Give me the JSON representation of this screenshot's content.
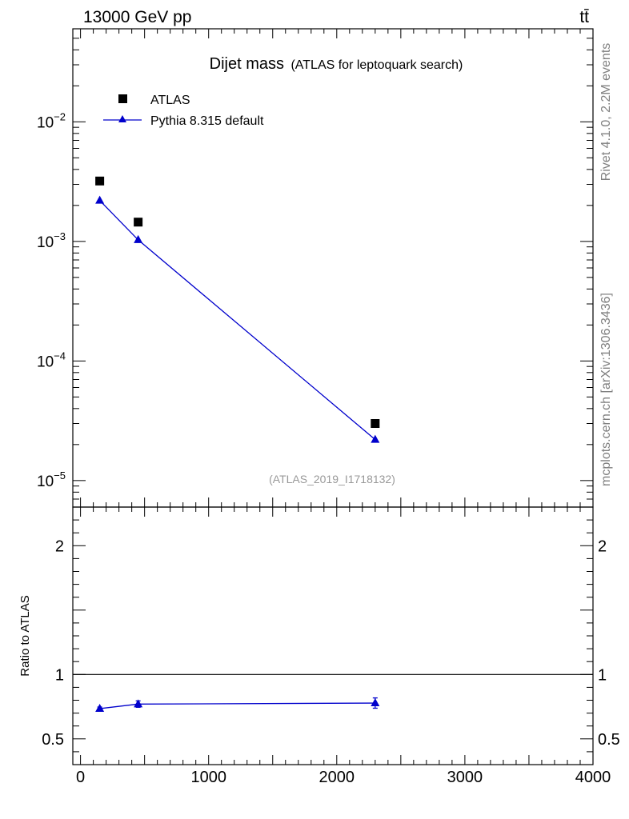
{
  "header": {
    "left": "13000 GeV pp",
    "right": "tt̄"
  },
  "side_labels": {
    "rivet": "Rivet 4.1.0,  2.2M events",
    "mcplots": "mcplots.cern.ch [arXiv:1306.3436]"
  },
  "chart_data": [
    {
      "type": "scatter",
      "title_main": "Dijet mass",
      "title_sub": "(ATLAS for leptoquark search)",
      "analysis_id": "(ATLAS_2019_I1718132)",
      "y_scale": "log",
      "xlim": [
        -60,
        4000
      ],
      "ylim": [
        6e-06,
        0.06
      ],
      "y_ticks": [
        {
          "value": 1e-05,
          "base": "10",
          "exp": "−5"
        },
        {
          "value": 0.0001,
          "base": "10",
          "exp": "−4"
        },
        {
          "value": 0.001,
          "base": "10",
          "exp": "−3"
        },
        {
          "value": 0.01,
          "base": "10",
          "exp": "−2"
        }
      ],
      "legend_position": "top-left",
      "series": [
        {
          "name": "ATLAS",
          "marker": "square",
          "color": "#000000",
          "x": [
            150,
            450,
            2300
          ],
          "y": [
            0.0032,
            0.00145,
            3e-05
          ]
        },
        {
          "name": "Pythia 8.315 default",
          "marker": "triangle",
          "color": "#0000cc",
          "x": [
            150,
            450,
            2300
          ],
          "y": [
            0.0022,
            0.00103,
            2.2e-05
          ]
        }
      ]
    },
    {
      "type": "line",
      "ylabel": "Ratio to ATLAS",
      "xlim": [
        -60,
        4000
      ],
      "ylim": [
        0.3,
        2.3
      ],
      "x_ticks": [
        {
          "value": 0,
          "label": "0"
        },
        {
          "value": 1000,
          "label": "1000"
        },
        {
          "value": 2000,
          "label": "2000"
        },
        {
          "value": 3000,
          "label": "3000"
        },
        {
          "value": 4000,
          "label": "4000"
        }
      ],
      "y_ticks": [
        {
          "value": 0.5,
          "label": "0.5"
        },
        {
          "value": 1,
          "label": "1"
        },
        {
          "value": 2,
          "label": "2"
        }
      ],
      "reference_line": 1,
      "series": [
        {
          "name": "Pythia 8.315 default",
          "color": "#0000cc",
          "x": [
            150,
            450,
            2300
          ],
          "y": [
            0.735,
            0.77,
            0.778
          ],
          "yerr": [
            0.012,
            0.025,
            0.04
          ]
        }
      ]
    }
  ]
}
